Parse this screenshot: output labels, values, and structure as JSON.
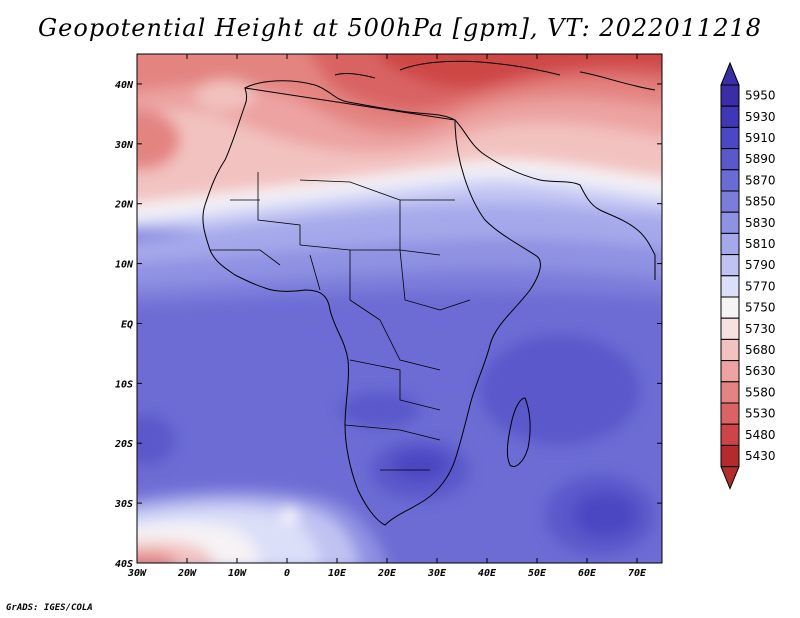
{
  "title": "Geopotential Height at 500hPa [gpm], VT: 2022011218",
  "footer": "GrADS: IGES/COLA",
  "map": {
    "lon_range": [
      -30,
      75
    ],
    "lat_range": [
      -40,
      45
    ],
    "lat_labels": [
      {
        "value": 40,
        "text": "40N"
      },
      {
        "value": 30,
        "text": "30N"
      },
      {
        "value": 20,
        "text": "20N"
      },
      {
        "value": 10,
        "text": "10N"
      },
      {
        "value": 0,
        "text": "EQ"
      },
      {
        "value": -10,
        "text": "10S"
      },
      {
        "value": -20,
        "text": "20S"
      },
      {
        "value": -30,
        "text": "30S"
      },
      {
        "value": -40,
        "text": "40S"
      }
    ],
    "lon_labels": [
      {
        "value": -30,
        "text": "30W"
      },
      {
        "value": -20,
        "text": "20W"
      },
      {
        "value": -10,
        "text": "10W"
      },
      {
        "value": 0,
        "text": "0"
      },
      {
        "value": 10,
        "text": "10E"
      },
      {
        "value": 20,
        "text": "20E"
      },
      {
        "value": 30,
        "text": "30E"
      },
      {
        "value": 40,
        "text": "40E"
      },
      {
        "value": 50,
        "text": "50E"
      },
      {
        "value": 60,
        "text": "60E"
      },
      {
        "value": 70,
        "text": "70E"
      }
    ]
  },
  "colorbar": {
    "levels": [
      "5950",
      "5930",
      "5910",
      "5890",
      "5870",
      "5850",
      "5830",
      "5810",
      "5790",
      "5770",
      "5750",
      "5730",
      "5680",
      "5630",
      "5580",
      "5530",
      "5480",
      "5430"
    ],
    "colors": [
      "#3a2ea8",
      "#3f37b6",
      "#4c47c2",
      "#5a58cb",
      "#6b6bd4",
      "#7c7dda",
      "#8f91e2",
      "#a5a8ea",
      "#c0c3f2",
      "#dcdff8",
      "#f6f3f5",
      "#f7e0e0",
      "#f2c2c0",
      "#eca3a1",
      "#e38481",
      "#d96463",
      "#cd4645",
      "#b52a2a"
    ]
  }
}
